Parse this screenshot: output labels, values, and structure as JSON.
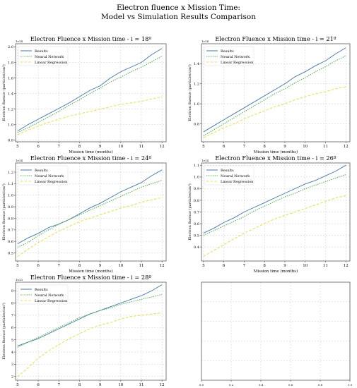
{
  "figure": {
    "title_line1": "Electron fluence x Mission Time:",
    "title_line2": "Model vs Simulation Results Comparison"
  },
  "colors": {
    "results": "#4477aa",
    "neural": "#44aa44",
    "linear": "#e6e05a",
    "grid": "#cccccc"
  },
  "chart_data": [
    {
      "type": "line",
      "title": "Electron Fluence x Mission time - i = 18º",
      "xlabel": "Mission time (months)",
      "ylabel": "Electron fluence (particles/cm²)",
      "offset": "1e14",
      "xlim": [
        4.9,
        12.2
      ],
      "ylim": [
        0.78,
        2.04
      ],
      "xticks": [
        5,
        6,
        7,
        8,
        9,
        10,
        11,
        12
      ],
      "yticks": [
        0.8,
        1.0,
        1.2,
        1.4,
        1.6,
        1.8,
        2.0
      ],
      "ytick_labels": [
        "0.8",
        "1.0",
        "1.2",
        "1.4",
        "1.6",
        "1.8",
        "2.0"
      ],
      "grid": true,
      "legend": "upper left",
      "x": [
        5.0,
        5.5,
        6.0,
        6.5,
        7.0,
        7.5,
        8.0,
        8.5,
        9.0,
        9.5,
        10.0,
        10.5,
        11.0,
        11.5,
        12.0
      ],
      "series": [
        {
          "name": "Results",
          "style": "solid",
          "values": [
            0.92,
            1.0,
            1.07,
            1.14,
            1.21,
            1.28,
            1.36,
            1.44,
            1.5,
            1.6,
            1.68,
            1.74,
            1.8,
            1.9,
            1.98
          ]
        },
        {
          "name": "Neural Network",
          "style": "dotted",
          "values": [
            0.9,
            0.96,
            1.03,
            1.1,
            1.17,
            1.25,
            1.32,
            1.4,
            1.47,
            1.55,
            1.61,
            1.68,
            1.74,
            1.81,
            1.88
          ]
        },
        {
          "name": "Linear Regression",
          "style": "dashed",
          "values": [
            0.87,
            0.93,
            0.98,
            1.03,
            1.07,
            1.11,
            1.14,
            1.17,
            1.2,
            1.23,
            1.26,
            1.28,
            1.3,
            1.33,
            1.36
          ]
        }
      ]
    },
    {
      "type": "line",
      "title": "Electron Fluence x Mission time - i = 21º",
      "xlabel": "Mission time (months)",
      "ylabel": "Electron fluence (particles/cm²)",
      "offset": "1e14",
      "xlim": [
        4.9,
        12.2
      ],
      "ylim": [
        0.62,
        1.6
      ],
      "xticks": [
        5,
        6,
        7,
        8,
        9,
        10,
        11,
        12
      ],
      "yticks": [
        0.8,
        1.0,
        1.2,
        1.4
      ],
      "ytick_labels": [
        "0.8",
        "1.0",
        "1.2",
        "1.4"
      ],
      "grid": true,
      "legend": "upper left",
      "x": [
        5.0,
        5.5,
        6.0,
        6.5,
        7.0,
        7.5,
        8.0,
        8.5,
        9.0,
        9.5,
        10.0,
        10.5,
        11.0,
        11.5,
        12.0
      ],
      "series": [
        {
          "name": "Results",
          "style": "solid",
          "values": [
            0.72,
            0.78,
            0.84,
            0.9,
            0.96,
            1.02,
            1.08,
            1.14,
            1.2,
            1.27,
            1.32,
            1.38,
            1.43,
            1.5,
            1.56
          ]
        },
        {
          "name": "Neural Network",
          "style": "dotted",
          "values": [
            0.68,
            0.74,
            0.8,
            0.86,
            0.92,
            0.98,
            1.04,
            1.1,
            1.15,
            1.21,
            1.26,
            1.32,
            1.37,
            1.43,
            1.48
          ]
        },
        {
          "name": "Linear Regression",
          "style": "dashed",
          "values": [
            0.66,
            0.71,
            0.76,
            0.8,
            0.85,
            0.89,
            0.93,
            0.97,
            1.0,
            1.04,
            1.07,
            1.1,
            1.12,
            1.15,
            1.17
          ]
        }
      ]
    },
    {
      "type": "line",
      "title": "Electron Fluence x Mission time - i = 24º",
      "xlabel": "Mission time (months)",
      "ylabel": "Electron fluence (particles/cm²)",
      "offset": "1e14",
      "xlim": [
        4.9,
        12.2
      ],
      "ylim": [
        0.43,
        1.28
      ],
      "xticks": [
        5,
        6,
        7,
        8,
        9,
        10,
        11,
        12
      ],
      "yticks": [
        0.5,
        0.6,
        0.7,
        0.8,
        0.9,
        1.0,
        1.1,
        1.2
      ],
      "ytick_labels": [
        "0.5",
        "0.6",
        "0.7",
        "0.8",
        "0.9",
        "1.0",
        "1.1",
        "1.2"
      ],
      "grid": true,
      "legend": "upper left",
      "x": [
        5.0,
        5.5,
        6.0,
        6.5,
        7.0,
        7.5,
        8.0,
        8.5,
        9.0,
        9.5,
        10.0,
        10.5,
        11.0,
        11.5,
        12.0
      ],
      "series": [
        {
          "name": "Results",
          "style": "solid",
          "values": [
            0.58,
            0.63,
            0.67,
            0.72,
            0.75,
            0.79,
            0.84,
            0.89,
            0.93,
            0.98,
            1.03,
            1.07,
            1.11,
            1.17,
            1.22
          ]
        },
        {
          "name": "Neural Network",
          "style": "dotted",
          "values": [
            0.55,
            0.59,
            0.65,
            0.7,
            0.75,
            0.79,
            0.83,
            0.87,
            0.91,
            0.95,
            0.99,
            1.03,
            1.07,
            1.1,
            1.13
          ]
        },
        {
          "name": "Linear Regression",
          "style": "dashed",
          "values": [
            0.47,
            0.53,
            0.59,
            0.64,
            0.69,
            0.73,
            0.77,
            0.8,
            0.83,
            0.86,
            0.89,
            0.91,
            0.94,
            0.96,
            0.98
          ]
        }
      ]
    },
    {
      "type": "line",
      "title": "Electron Fluence x Mission time - i = 26º",
      "xlabel": "Mission time (months)",
      "ylabel": "Electron fluence (particles/cm²)",
      "offset": "1e14",
      "xlim": [
        4.9,
        12.2
      ],
      "ylim": [
        0.28,
        1.12
      ],
      "xticks": [
        5,
        6,
        7,
        8,
        9,
        10,
        11,
        12
      ],
      "yticks": [
        0.4,
        0.5,
        0.6,
        0.7,
        0.8,
        0.9,
        1.0,
        1.1
      ],
      "ytick_labels": [
        "0.4",
        "0.5",
        "0.6",
        "0.7",
        "0.8",
        "0.9",
        "1.0",
        "1.1"
      ],
      "grid": true,
      "legend": "upper left",
      "x": [
        5.0,
        5.5,
        6.0,
        6.5,
        7.0,
        7.5,
        8.0,
        8.5,
        9.0,
        9.5,
        10.0,
        10.5,
        11.0,
        11.5,
        12.0
      ],
      "series": [
        {
          "name": "Results",
          "style": "solid",
          "values": [
            0.52,
            0.56,
            0.61,
            0.65,
            0.7,
            0.74,
            0.78,
            0.82,
            0.86,
            0.9,
            0.94,
            0.97,
            1.01,
            1.05,
            1.1
          ]
        },
        {
          "name": "Neural Network",
          "style": "dotted",
          "values": [
            0.5,
            0.54,
            0.58,
            0.62,
            0.66,
            0.71,
            0.75,
            0.79,
            0.83,
            0.86,
            0.9,
            0.93,
            0.96,
            0.99,
            1.02
          ]
        },
        {
          "name": "Linear Regression",
          "style": "dashed",
          "values": [
            0.32,
            0.37,
            0.42,
            0.47,
            0.52,
            0.56,
            0.6,
            0.64,
            0.67,
            0.7,
            0.73,
            0.76,
            0.79,
            0.82,
            0.84
          ]
        }
      ]
    },
    {
      "type": "line",
      "title": "Electron Fluence x Mission time - i = 28º",
      "xlabel": "Mission time (months)",
      "ylabel": "Electron fluence (particles/cm²)",
      "offset": "1e13",
      "xlim": [
        4.9,
        12.2
      ],
      "ylim": [
        1.7,
        9.7
      ],
      "xticks": [
        5,
        6,
        7,
        8,
        9,
        10,
        11,
        12
      ],
      "yticks": [
        2,
        3,
        4,
        5,
        6,
        7,
        8,
        9
      ],
      "ytick_labels": [
        "2",
        "3",
        "4",
        "5",
        "6",
        "7",
        "8",
        "9"
      ],
      "grid": true,
      "legend": "upper left",
      "x": [
        5.0,
        5.5,
        6.0,
        6.5,
        7.0,
        7.5,
        8.0,
        8.5,
        9.0,
        9.5,
        10.0,
        10.5,
        11.0,
        11.5,
        12.0
      ],
      "series": [
        {
          "name": "Results",
          "style": "solid",
          "values": [
            4.5,
            4.8,
            5.1,
            5.5,
            5.9,
            6.3,
            6.7,
            7.1,
            7.4,
            7.7,
            8.0,
            8.3,
            8.6,
            9.0,
            9.5
          ]
        },
        {
          "name": "Neural Network",
          "style": "dotted",
          "values": [
            4.4,
            4.8,
            5.2,
            5.6,
            6.0,
            6.4,
            6.8,
            7.1,
            7.4,
            7.6,
            7.9,
            8.1,
            8.3,
            8.5,
            8.7
          ]
        },
        {
          "name": "Linear Regression",
          "style": "dashed",
          "values": [
            2.0,
            2.7,
            3.5,
            4.1,
            4.6,
            5.1,
            5.5,
            5.9,
            6.2,
            6.4,
            6.7,
            6.9,
            7.0,
            7.1,
            7.2
          ]
        }
      ]
    },
    {
      "type": "line",
      "title": "",
      "xlabel": "",
      "ylabel": "",
      "xlim": [
        0.0,
        1.0
      ],
      "ylim": [
        0.0,
        1.0
      ],
      "xticks": [
        0.0,
        0.2,
        0.4,
        0.6,
        0.8,
        1.0
      ],
      "xtick_labels": [
        "0.0",
        "0.2",
        "0.4",
        "0.6",
        "0.8",
        "1.0"
      ],
      "yticks": [],
      "ytick_labels": [],
      "grid": true,
      "series": []
    }
  ]
}
